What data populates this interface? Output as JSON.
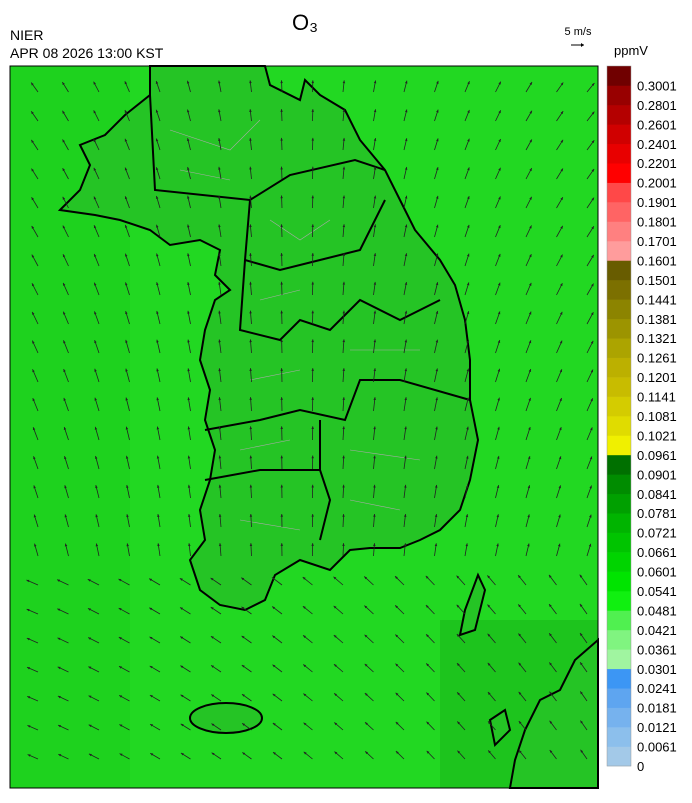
{
  "header": {
    "title": "O₃",
    "source": "NIER",
    "timestamp": "APR 08 2026 13:00 KST",
    "wind_scale": "5 m/s"
  },
  "colorbar": {
    "unit": "ppmV",
    "levels": [
      0,
      0.0061,
      0.0121,
      0.0181,
      0.0241,
      0.0301,
      0.0361,
      0.0421,
      0.0481,
      0.0541,
      0.0601,
      0.0661,
      0.0721,
      0.0781,
      0.0841,
      0.0901,
      0.0961,
      0.1021,
      0.1081,
      0.1141,
      0.1201,
      0.1261,
      0.1321,
      0.1381,
      0.1441,
      0.1501,
      0.1601,
      0.1701,
      0.1801,
      0.1901,
      0.2001,
      0.2201,
      0.2401,
      0.2601,
      0.2801,
      0.3001
    ],
    "colors": [
      "#a3c9e8",
      "#8cbfec",
      "#76b2ee",
      "#5ea5f0",
      "#3c96f4",
      "#a0f5a0",
      "#80f480",
      "#50f050",
      "#10f010",
      "#00e400",
      "#00d400",
      "#00c400",
      "#00b400",
      "#00a000",
      "#008c00",
      "#007000",
      "#f0f000",
      "#e0dc00",
      "#d4cc00",
      "#c8bc00",
      "#bcb000",
      "#aca400",
      "#9c9400",
      "#8c8400",
      "#7c7000",
      "#685c00",
      "#ff9c9c",
      "#ff8080",
      "#ff6464",
      "#ff4848",
      "#ff0000",
      "#e80000",
      "#d00000",
      "#b40000",
      "#980000",
      "#700000"
    ]
  }
}
